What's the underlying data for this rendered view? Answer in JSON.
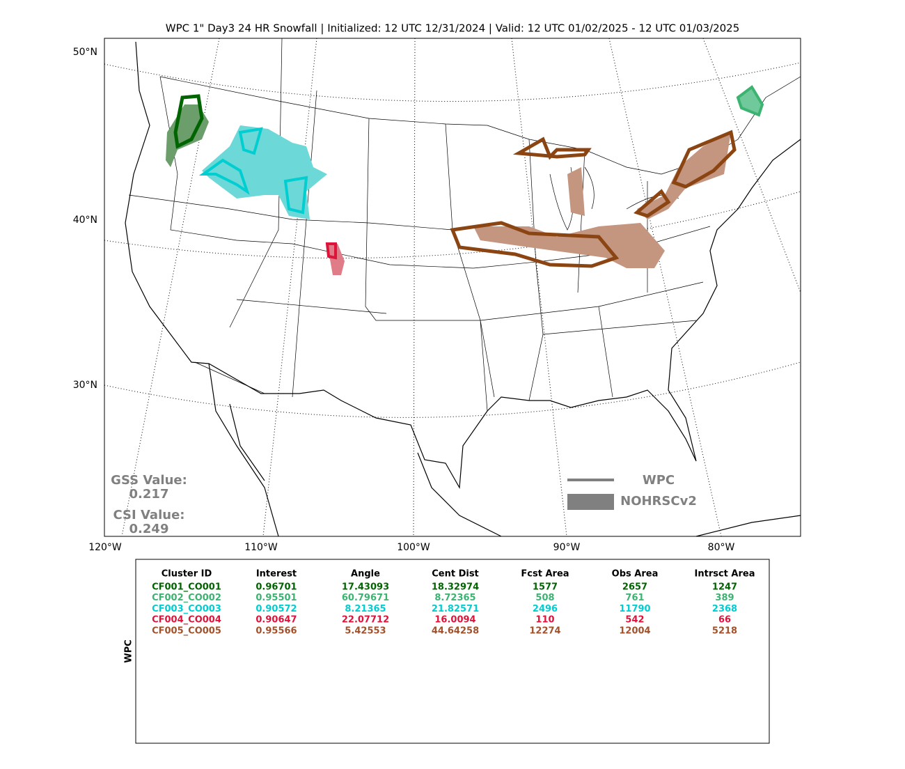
{
  "title": "WPC 1\" Day3 24 HR Snowfall | Initialized: 12 UTC 12/31/2024 | Valid: 12 UTC 01/02/2025 - 12 UTC 01/03/2025",
  "map": {
    "lat_labels": [
      "50°N",
      "40°N",
      "30°N"
    ],
    "lon_labels": [
      "120°W",
      "110°W",
      "100°W",
      "90°W",
      "80°W"
    ]
  },
  "scores": {
    "gss_label": "GSS Value:",
    "gss": "0.217",
    "csi_label": "CSI Value:",
    "csi": "0.249"
  },
  "legend": [
    "WPC",
    "NOHRSCv2"
  ],
  "table": {
    "side_label": "WPC",
    "columns": [
      "Cluster ID",
      "Interest",
      "Angle",
      "Cent Dist",
      "Fcst Area",
      "Obs Area",
      "Intrsct Area"
    ],
    "rows": [
      {
        "color": "#006400",
        "cells": [
          "CF001_CO001",
          "0.96701",
          "17.43093",
          "18.32974",
          "1577",
          "2657",
          "1247"
        ]
      },
      {
        "color": "#3cb371",
        "cells": [
          "CF002_CO002",
          "0.95501",
          "60.79671",
          "8.72365",
          "508",
          "761",
          "389"
        ]
      },
      {
        "color": "#00ced1",
        "cells": [
          "CF003_CO003",
          "0.90572",
          "8.21365",
          "21.82571",
          "2496",
          "11790",
          "2368"
        ]
      },
      {
        "color": "#dc143c",
        "cells": [
          "CF004_CO004",
          "0.90647",
          "22.07712",
          "16.0094",
          "110",
          "542",
          "66"
        ]
      },
      {
        "color": "#a0522d",
        "cells": [
          "CF005_CO005",
          "0.95566",
          "5.42553",
          "44.64258",
          "12274",
          "12004",
          "5218"
        ]
      }
    ]
  }
}
